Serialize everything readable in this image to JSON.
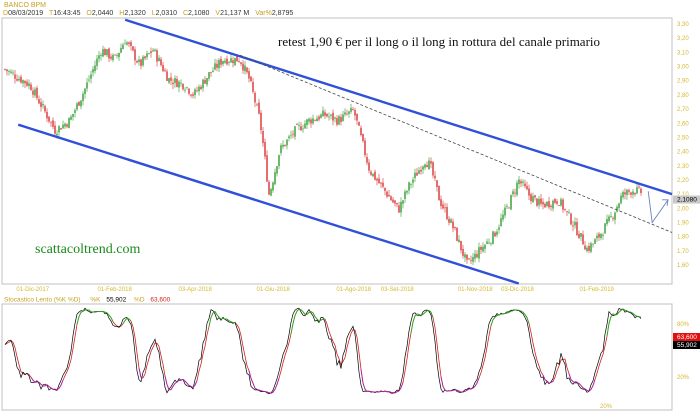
{
  "header": {
    "symbol": "BANCO BPM",
    "date_label": "D",
    "date": "08/03/2019",
    "time_label": "T",
    "time": "16:43:45",
    "open_label": "O",
    "open": "2,0440",
    "high_label": "H",
    "high": "2,1320",
    "low_label": "L",
    "low": "2,0310",
    "close_label": "C",
    "close": "2,1080",
    "volume_label": "V",
    "volume": "21,137 M",
    "var_label": "Var%",
    "var": "2,8795"
  },
  "annotation": "retest 1,90 € per il long o il long in rottura del canale primario",
  "watermark": "scattacoltrend.com",
  "colors": {
    "up": "#2e9a2e",
    "down": "#d83030",
    "channel": "#3050d8",
    "dashed": "#444444",
    "arrow": "#6a80c0",
    "k": "#000000",
    "d": "#d02020",
    "overbought": "#20b020",
    "oversold": "#b020b0",
    "last_price_tag": "#c8c8c8"
  },
  "chart_data": [
    {
      "type": "candlestick",
      "title": "BANCO BPM",
      "y_axis_position": "right",
      "ylim": [
        1.52,
        3.36
      ],
      "xlim": [
        "2017-11-10",
        "2019-03-30"
      ],
      "y_ticks": [
        "3,30",
        "3,20",
        "3,10",
        "3,00",
        "2,90",
        "2,80",
        "2,70",
        "2,60",
        "2,50",
        "2,40",
        "2,30",
        "2,20",
        "2,10",
        "2,00",
        "1,90",
        "1,80",
        "1,70",
        "1,60"
      ],
      "y_tick_values": [
        3.3,
        3.2,
        3.1,
        3.0,
        2.9,
        2.8,
        2.7,
        2.6,
        2.5,
        2.4,
        2.3,
        2.2,
        2.1,
        2.0,
        1.9,
        1.8,
        1.7,
        1.6
      ],
      "x_ticks": [
        {
          "date": "2017-12-01",
          "label": "01-Dic-2017"
        },
        {
          "date": "2018-02-01",
          "label": "01-Feb-2018"
        },
        {
          "date": "2018-04-03",
          "label": "03-Apr-2018"
        },
        {
          "date": "2018-06-01",
          "label": "01-Giu-2018"
        },
        {
          "date": "2018-08-01",
          "label": "01-Ago-2018"
        },
        {
          "date": "2018-09-03",
          "label": "03-Set-2018"
        },
        {
          "date": "2018-11-01",
          "label": "01-Nov-2018"
        },
        {
          "date": "2018-12-03",
          "label": "03-Dic-2018"
        },
        {
          "date": "2019-02-01",
          "label": "01-Feb-2019"
        }
      ],
      "last_price": "2,1080",
      "last_price_value": 2.108,
      "approx_closes": [
        [
          "2017-11-10",
          2.98
        ],
        [
          "2017-11-29",
          2.87
        ],
        [
          "2017-12-18",
          2.55
        ],
        [
          "2017-12-29",
          2.62
        ],
        [
          "2018-01-09",
          2.83
        ],
        [
          "2018-01-22",
          3.12
        ],
        [
          "2018-02-01",
          3.05
        ],
        [
          "2018-02-09",
          3.19
        ],
        [
          "2018-02-20",
          3.01
        ],
        [
          "2018-03-02",
          3.12
        ],
        [
          "2018-03-14",
          2.91
        ],
        [
          "2018-03-26",
          2.87
        ],
        [
          "2018-04-02",
          2.8
        ],
        [
          "2018-04-13",
          2.94
        ],
        [
          "2018-04-24",
          3.05
        ],
        [
          "2018-05-07",
          3.05
        ],
        [
          "2018-05-14",
          2.91
        ],
        [
          "2018-05-22",
          2.62
        ],
        [
          "2018-05-25",
          2.41
        ],
        [
          "2018-05-29",
          2.09
        ],
        [
          "2018-06-06",
          2.41
        ],
        [
          "2018-06-18",
          2.55
        ],
        [
          "2018-06-28",
          2.62
        ],
        [
          "2018-07-10",
          2.66
        ],
        [
          "2018-07-20",
          2.62
        ],
        [
          "2018-08-01",
          2.69
        ],
        [
          "2018-08-07",
          2.48
        ],
        [
          "2018-08-13",
          2.27
        ],
        [
          "2018-08-24",
          2.13
        ],
        [
          "2018-09-04",
          1.99
        ],
        [
          "2018-09-12",
          2.16
        ],
        [
          "2018-09-24",
          2.34
        ],
        [
          "2018-09-28",
          2.3
        ],
        [
          "2018-10-05",
          2.06
        ],
        [
          "2018-10-16",
          1.85
        ],
        [
          "2018-10-26",
          1.6
        ],
        [
          "2018-11-05",
          1.71
        ],
        [
          "2018-11-15",
          1.81
        ],
        [
          "2018-11-26",
          2.02
        ],
        [
          "2018-12-04",
          2.2
        ],
        [
          "2018-12-12",
          2.09
        ],
        [
          "2018-12-21",
          2.02
        ],
        [
          "2019-01-03",
          2.06
        ],
        [
          "2019-01-15",
          1.88
        ],
        [
          "2019-01-25",
          1.71
        ],
        [
          "2019-02-01",
          1.78
        ],
        [
          "2019-02-13",
          1.95
        ],
        [
          "2019-02-20",
          2.09
        ],
        [
          "2019-02-28",
          2.13
        ],
        [
          "2019-03-08",
          2.108
        ]
      ],
      "trendlines": [
        {
          "style": "solid",
          "color": "#3050d8",
          "from": [
            "2018-02-09",
            3.33
          ],
          "to": [
            "2019-03-30",
            2.1
          ]
        },
        {
          "style": "solid",
          "color": "#3050d8",
          "from": [
            "2017-11-20",
            2.59
          ],
          "to": [
            "2018-12-04",
            1.47
          ]
        },
        {
          "style": "dashed",
          "color": "#444444",
          "from": [
            "2018-05-07",
            3.08
          ],
          "to": [
            "2019-03-30",
            1.83
          ]
        }
      ],
      "arrow_path": [
        [
          "2019-03-12",
          2.12
        ],
        [
          "2019-03-15",
          1.9
        ],
        [
          "2019-03-27",
          2.06
        ]
      ]
    },
    {
      "type": "line",
      "title": "Stocastico Lento (%K %D)",
      "k_label": "%K",
      "k_value": "55,902",
      "d_label": "%D",
      "d_value": "63,600",
      "ylim": [
        0,
        100
      ],
      "y_ticks": [
        "80%",
        "20%"
      ],
      "y_tick_values": [
        80,
        20
      ],
      "bottom_label": "20%"
    }
  ]
}
